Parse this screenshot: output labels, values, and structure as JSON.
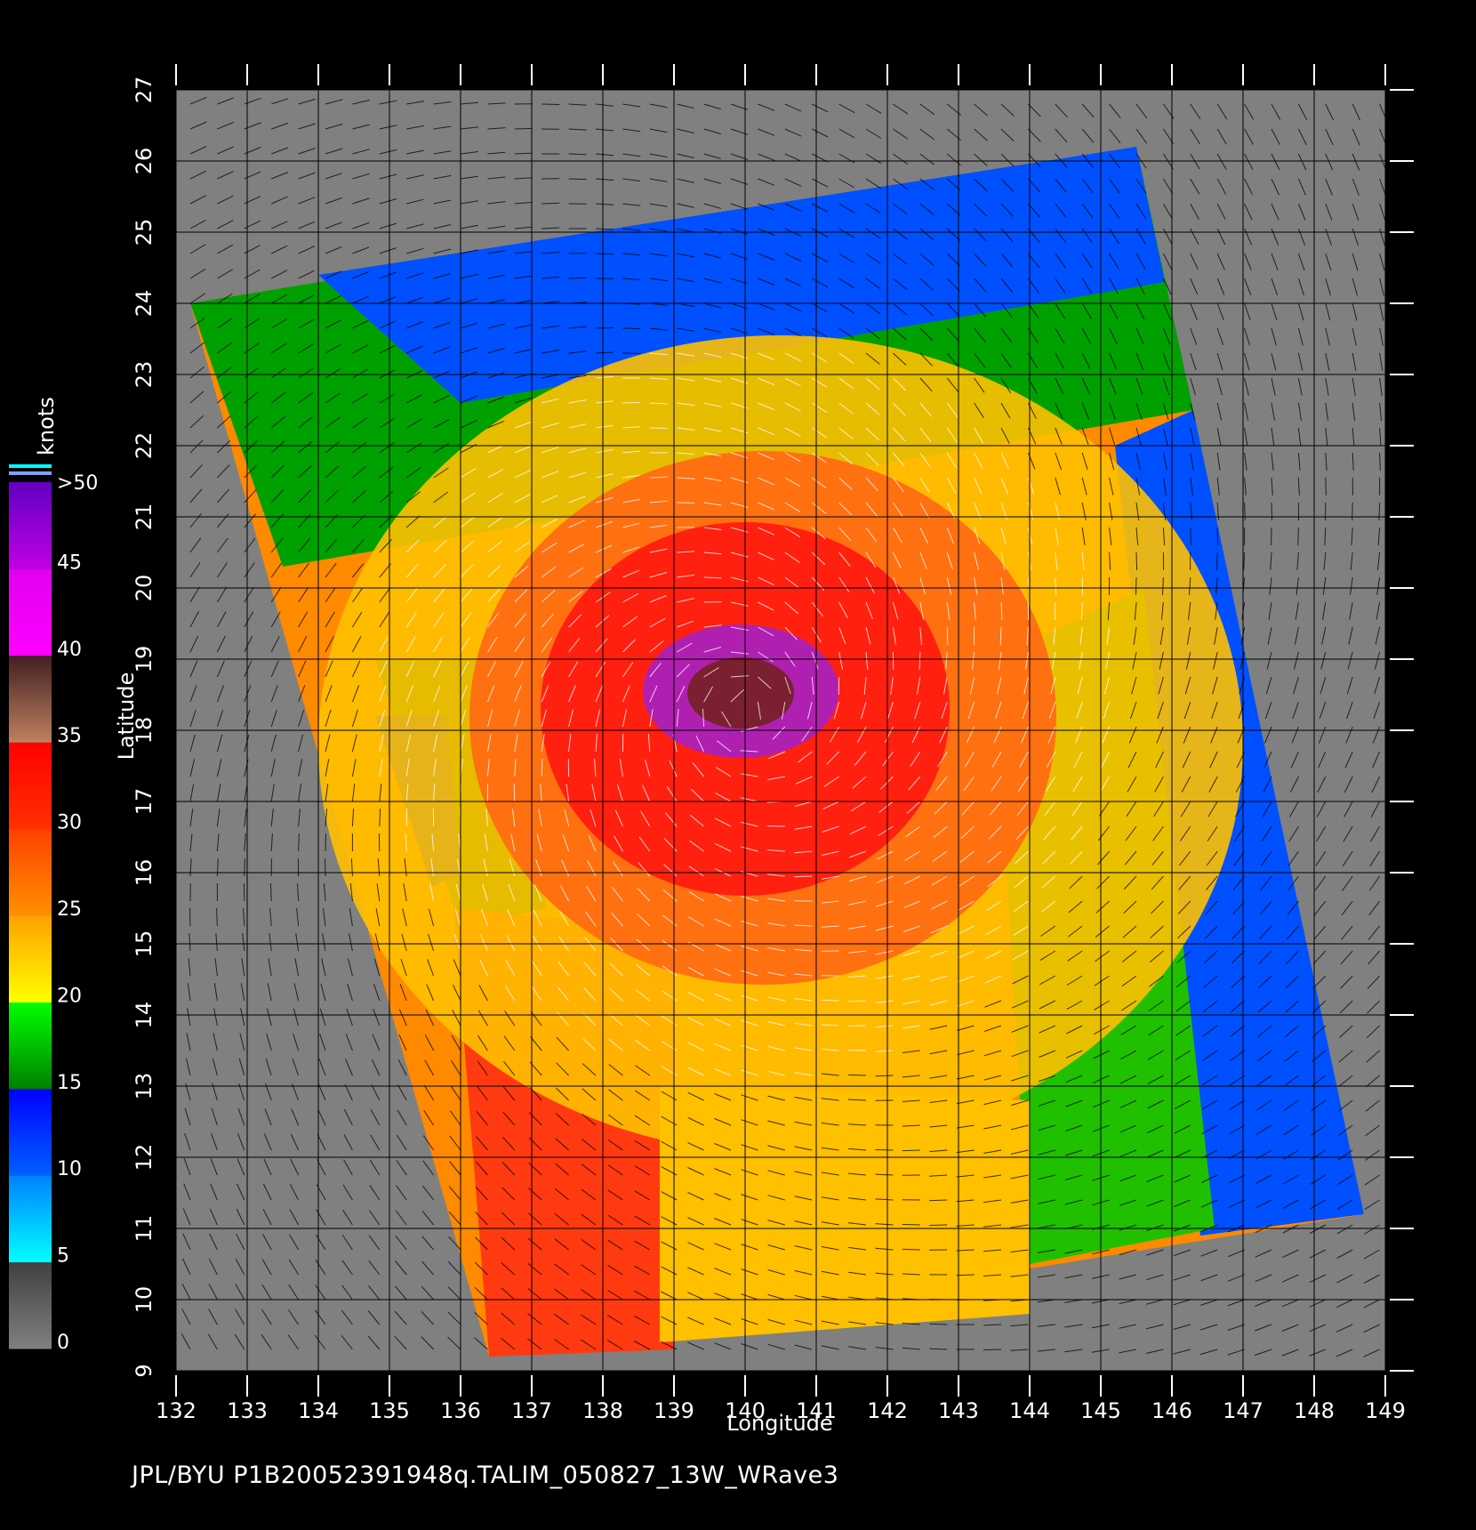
{
  "footer": "JPL/BYU  P1B20052391948q.TALIM_050827_13W_WRave3",
  "map": {
    "xlabel": "Longitude",
    "ylabel": "Latitude",
    "lon_ticks": [
      "132",
      "133",
      "134",
      "135",
      "136",
      "137",
      "138",
      "139",
      "140",
      "141",
      "142",
      "143",
      "144",
      "145",
      "146",
      "147",
      "148",
      "149"
    ],
    "lat_ticks": [
      "9",
      "10",
      "11",
      "12",
      "13",
      "14",
      "15",
      "16",
      "17",
      "18",
      "19",
      "20",
      "21",
      "22",
      "23",
      "24",
      "25",
      "26",
      "27"
    ],
    "lon_range": [
      132,
      149
    ],
    "lat_range": [
      9,
      27
    ],
    "background_color": "#808080",
    "grid_color": "#000000",
    "swath_corners_lonlat": [
      [
        132.2,
        24.0
      ],
      [
        145.5,
        26.2
      ],
      [
        148.7,
        11.2
      ],
      [
        136.4,
        9.2
      ]
    ],
    "storm_center_lonlat": [
      140.0,
      18.3
    ]
  },
  "colorbar": {
    "title": "knots",
    "tick_labels": [
      ">50",
      "45",
      "40",
      "35",
      "30",
      "25",
      "20",
      "15",
      "10",
      "5",
      "0"
    ],
    "bands": [
      {
        "from": 0,
        "to": 5,
        "colors": [
          "#808080",
          "#404040"
        ]
      },
      {
        "from": 5,
        "to": 10,
        "colors": [
          "#00ffff",
          "#0080ff"
        ]
      },
      {
        "from": 10,
        "to": 15,
        "colors": [
          "#0060ff",
          "#0000ff"
        ]
      },
      {
        "from": 15,
        "to": 20,
        "colors": [
          "#008000",
          "#00ff00"
        ]
      },
      {
        "from": 20,
        "to": 25,
        "colors": [
          "#ffff00",
          "#ffa000"
        ]
      },
      {
        "from": 25,
        "to": 30,
        "colors": [
          "#ff9000",
          "#ff4000"
        ]
      },
      {
        "from": 30,
        "to": 35,
        "colors": [
          "#ff3000",
          "#ff0000"
        ]
      },
      {
        "from": 35,
        "to": 40,
        "colors": [
          "#c08060",
          "#402020"
        ]
      },
      {
        "from": 40,
        "to": 45,
        "colors": [
          "#ff00ff",
          "#e000f0"
        ]
      },
      {
        "from": 45,
        "to": 50,
        "colors": [
          "#c000e0",
          "#6000c0"
        ]
      }
    ]
  }
}
